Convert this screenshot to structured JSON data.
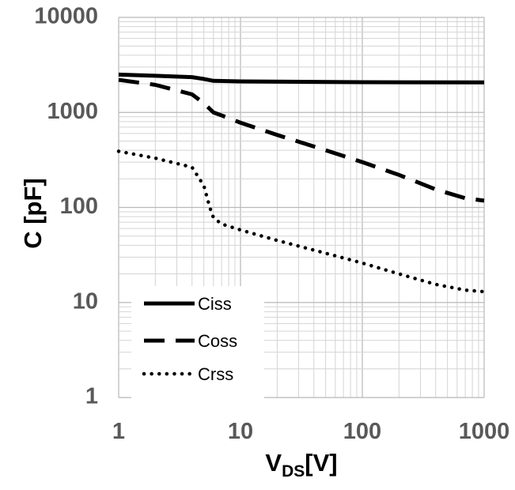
{
  "chart_data": {
    "type": "line",
    "x_scale": "log",
    "y_scale": "log",
    "xlim": [
      1,
      1000
    ],
    "ylim": [
      1,
      10000
    ],
    "x_ticks": [
      "1",
      "10",
      "100",
      "1000"
    ],
    "y_ticks": [
      "10000",
      "1000",
      "100",
      "10",
      "1"
    ],
    "xlabel_main": "V",
    "xlabel_sub": "DS",
    "xlabel_unit": "[V]",
    "ylabel": "C [pF]",
    "grid": "major and minor",
    "legend_position": "bottom-left",
    "series": [
      {
        "name": "Ciss",
        "line_style": "solid",
        "color": "#000000",
        "points": [
          [
            1,
            2500
          ],
          [
            2,
            2430
          ],
          [
            4,
            2350
          ],
          [
            5,
            2250
          ],
          [
            6,
            2150
          ],
          [
            10,
            2120
          ],
          [
            100,
            2080
          ],
          [
            1000,
            2070
          ]
        ]
      },
      {
        "name": "Coss",
        "line_style": "dashed",
        "color": "#000000",
        "points": [
          [
            1,
            2200
          ],
          [
            2,
            1950
          ],
          [
            4,
            1550
          ],
          [
            5,
            1250
          ],
          [
            6,
            1000
          ],
          [
            7,
            930
          ],
          [
            10,
            780
          ],
          [
            20,
            580
          ],
          [
            50,
            400
          ],
          [
            100,
            300
          ],
          [
            200,
            220
          ],
          [
            400,
            155
          ],
          [
            700,
            125
          ],
          [
            1000,
            118
          ]
        ]
      },
      {
        "name": "Crss",
        "line_style": "dotted",
        "color": "#000000",
        "points": [
          [
            1,
            390
          ],
          [
            2,
            330
          ],
          [
            4,
            265
          ],
          [
            5,
            170
          ],
          [
            5.6,
            100
          ],
          [
            6,
            78
          ],
          [
            7,
            67
          ],
          [
            10,
            58
          ],
          [
            20,
            45
          ],
          [
            50,
            33
          ],
          [
            100,
            26
          ],
          [
            200,
            20
          ],
          [
            400,
            15.5
          ],
          [
            700,
            13.5
          ],
          [
            1000,
            13
          ]
        ]
      }
    ]
  }
}
